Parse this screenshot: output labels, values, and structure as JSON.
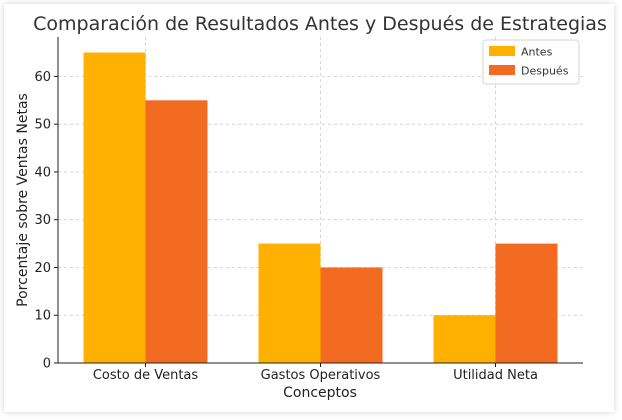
{
  "chart_data": {
    "type": "bar",
    "title": "Comparación de Resultados Antes y Después de Estrategias",
    "xlabel": "Conceptos",
    "ylabel": "Porcentaje sobre Ventas Netas",
    "categories": [
      "Costo de Ventas",
      "Gastos Operativos",
      "Utilidad Neta"
    ],
    "series": [
      {
        "name": "Antes",
        "values": [
          65,
          25,
          10
        ],
        "color": "#FFB000"
      },
      {
        "name": "Después",
        "values": [
          55,
          20,
          25
        ],
        "color": "#F26B21"
      }
    ],
    "ylim": [
      0,
      68.25
    ],
    "yticks": [
      "0",
      "10",
      "20",
      "30",
      "40",
      "50",
      "60"
    ],
    "grid": true,
    "legend_position": "top-right"
  }
}
